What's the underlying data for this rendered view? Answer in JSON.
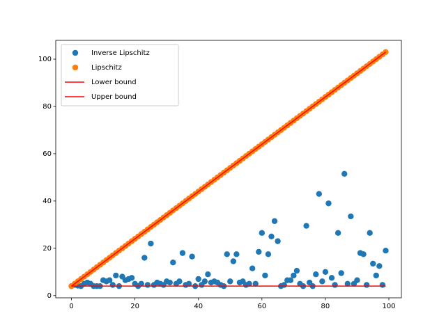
{
  "chart_data": {
    "type": "scatter",
    "x": [
      0,
      1,
      2,
      3,
      4,
      5,
      6,
      7,
      8,
      9,
      10,
      11,
      12,
      13,
      14,
      15,
      16,
      17,
      18,
      19,
      20,
      21,
      22,
      23,
      24,
      25,
      26,
      27,
      28,
      29,
      30,
      31,
      32,
      33,
      34,
      35,
      36,
      37,
      38,
      39,
      40,
      41,
      42,
      43,
      44,
      45,
      46,
      47,
      48,
      49,
      50,
      51,
      52,
      53,
      54,
      55,
      56,
      57,
      58,
      59,
      60,
      61,
      62,
      63,
      64,
      65,
      66,
      67,
      68,
      69,
      70,
      71,
      72,
      73,
      74,
      75,
      76,
      77,
      78,
      79,
      80,
      81,
      82,
      83,
      84,
      85,
      86,
      87,
      88,
      89,
      90,
      91,
      92,
      93,
      94,
      95,
      96,
      97,
      98,
      99
    ],
    "series": [
      {
        "name": "Inverse Lipschitz",
        "kind": "scatter",
        "color": "#1f77b4",
        "values": [
          4,
          4.5,
          4.2,
          4,
          5,
          5.5,
          5,
          4,
          4,
          4,
          6.5,
          6,
          6.5,
          4.5,
          8.5,
          4,
          8,
          6.5,
          7,
          7.5,
          5,
          4,
          5,
          16,
          4.5,
          22,
          4.5,
          5.5,
          5,
          4.5,
          6,
          5.5,
          14,
          5,
          6,
          18,
          4.5,
          5,
          16.5,
          4,
          7,
          4.5,
          6,
          9,
          5.5,
          6,
          5.5,
          4.5,
          4,
          17.5,
          6,
          14.5,
          17.5,
          5.5,
          6,
          4.5,
          5,
          11.5,
          5,
          18.5,
          26.5,
          8.5,
          17.5,
          25,
          31.5,
          23,
          4,
          4.5,
          6.5,
          6.5,
          8.5,
          10.5,
          5,
          4,
          29.5,
          5.5,
          4,
          9,
          43,
          6,
          10,
          39,
          7.5,
          4.5,
          26.5,
          9.5,
          51.5,
          5,
          33.5,
          5,
          6.5,
          18,
          17.5,
          4.5,
          26.5,
          13.5,
          8.5,
          12.5,
          4.5,
          19
        ]
      },
      {
        "name": "Lipschitz",
        "kind": "scatter",
        "color": "#ff7f0e",
        "values": [
          4,
          5,
          6,
          7,
          8,
          9,
          10,
          11,
          12,
          13,
          14,
          15,
          16,
          17,
          18,
          19,
          20,
          21,
          22,
          23,
          24,
          25,
          26,
          27,
          28,
          29,
          30,
          31,
          32,
          33,
          34,
          35,
          36,
          37,
          38,
          39,
          40,
          41,
          42,
          43,
          44,
          45,
          46,
          47,
          48,
          49,
          50,
          51,
          52,
          53,
          54,
          55,
          56,
          57,
          58,
          59,
          60,
          61,
          62,
          63,
          64,
          65,
          66,
          67,
          68,
          69,
          70,
          71,
          72,
          73,
          74,
          75,
          76,
          77,
          78,
          79,
          80,
          81,
          82,
          83,
          84,
          85,
          86,
          87,
          88,
          89,
          90,
          91,
          92,
          93,
          94,
          95,
          96,
          97,
          98,
          99,
          100,
          101,
          102,
          103
        ]
      },
      {
        "name": "Lower bound",
        "kind": "line",
        "color": "#ff0000",
        "values": [
          4,
          4,
          4,
          4,
          4,
          4,
          4,
          4,
          4,
          4,
          4,
          4,
          4,
          4,
          4,
          4,
          4,
          4,
          4,
          4,
          4,
          4,
          4,
          4,
          4,
          4,
          4,
          4,
          4,
          4,
          4,
          4,
          4,
          4,
          4,
          4,
          4,
          4,
          4,
          4,
          4,
          4,
          4,
          4,
          4,
          4,
          4,
          4,
          4,
          4,
          4,
          4,
          4,
          4,
          4,
          4,
          4,
          4,
          4,
          4,
          4,
          4,
          4,
          4,
          4,
          4,
          4,
          4,
          4,
          4,
          4,
          4,
          4,
          4,
          4,
          4,
          4,
          4,
          4,
          4,
          4,
          4,
          4,
          4,
          4,
          4,
          4,
          4,
          4,
          4,
          4,
          4,
          4,
          4,
          4,
          4,
          4,
          4,
          4,
          4
        ]
      },
      {
        "name": "Upper bound",
        "kind": "line",
        "color": "#ff0000",
        "values": [
          4,
          5,
          6,
          7,
          8,
          9,
          10,
          11,
          12,
          13,
          14,
          15,
          16,
          17,
          18,
          19,
          20,
          21,
          22,
          23,
          24,
          25,
          26,
          27,
          28,
          29,
          30,
          31,
          32,
          33,
          34,
          35,
          36,
          37,
          38,
          39,
          40,
          41,
          42,
          43,
          44,
          45,
          46,
          47,
          48,
          49,
          50,
          51,
          52,
          53,
          54,
          55,
          56,
          57,
          58,
          59,
          60,
          61,
          62,
          63,
          64,
          65,
          66,
          67,
          68,
          69,
          70,
          71,
          72,
          73,
          74,
          75,
          76,
          77,
          78,
          79,
          80,
          81,
          82,
          83,
          84,
          85,
          86,
          87,
          88,
          89,
          90,
          91,
          92,
          93,
          94,
          95,
          96,
          97,
          98,
          99,
          100,
          101,
          102,
          103
        ]
      }
    ],
    "xlim": [
      -4.95,
      103.95
    ],
    "ylim": [
      -0.95,
      107.95
    ],
    "xticks": [
      0,
      20,
      40,
      60,
      80,
      100
    ],
    "yticks": [
      0,
      20,
      40,
      60,
      80,
      100
    ],
    "legend": "upper left"
  }
}
